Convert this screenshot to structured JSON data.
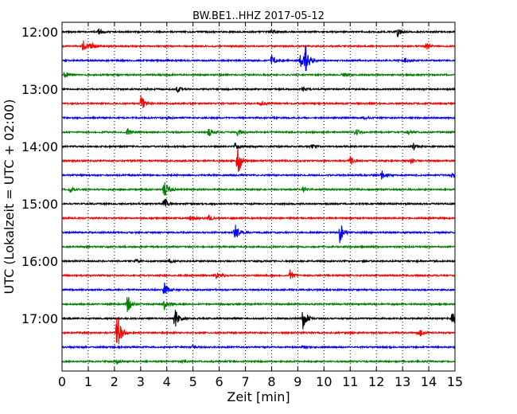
{
  "chart_data": {
    "type": "line",
    "title": "BW.BE1..HHZ 2017-05-12",
    "xlabel": "Zeit  [min]",
    "ylabel": "UTC (Lokalzeit = UTC + 02:00)",
    "xlim": [
      0,
      15
    ],
    "x_ticks": [
      "0",
      "1",
      "2",
      "3",
      "4",
      "5",
      "6",
      "7",
      "8",
      "9",
      "10",
      "11",
      "12",
      "13",
      "14",
      "15"
    ],
    "y_tick_labels": [
      "12:00",
      "13:00",
      "14:00",
      "15:00",
      "16:00",
      "17:00"
    ],
    "y_tick_rows": [
      0,
      4,
      8,
      12,
      16,
      20
    ],
    "grid": true,
    "series_colors": [
      "#000000",
      "#ff0000",
      "#0000ff",
      "#008000"
    ],
    "rows": [
      {
        "start": "12:00",
        "color": "#000000",
        "events": [
          {
            "t": 1.4,
            "a": 4
          },
          {
            "t": 8.0,
            "a": 3
          },
          {
            "t": 12.8,
            "a": 6
          }
        ]
      },
      {
        "start": "12:15",
        "color": "#ff0000",
        "events": [
          {
            "t": 0.8,
            "a": 10
          },
          {
            "t": 1.1,
            "a": 4
          },
          {
            "t": 13.9,
            "a": 5
          }
        ]
      },
      {
        "start": "12:30",
        "color": "#0000ff",
        "events": [
          {
            "t": 8.0,
            "a": 8
          },
          {
            "t": 9.1,
            "a": 10
          },
          {
            "t": 9.3,
            "a": 18
          },
          {
            "t": 13.1,
            "a": 3
          }
        ]
      },
      {
        "start": "12:45",
        "color": "#008000",
        "events": [
          {
            "t": 0.1,
            "a": 5
          },
          {
            "t": 10.7,
            "a": 3
          }
        ]
      },
      {
        "start": "13:00",
        "color": "#000000",
        "events": [
          {
            "t": 4.4,
            "a": 4
          },
          {
            "t": 9.2,
            "a": 3
          }
        ]
      },
      {
        "start": "13:15",
        "color": "#ff0000",
        "events": [
          {
            "t": 3.0,
            "a": 14
          },
          {
            "t": 7.6,
            "a": 4
          }
        ]
      },
      {
        "start": "13:30",
        "color": "#0000ff",
        "events": [
          {
            "t": 4.0,
            "a": 2
          },
          {
            "t": 11.5,
            "a": 2
          }
        ]
      },
      {
        "start": "13:45",
        "color": "#008000",
        "events": [
          {
            "t": 2.5,
            "a": 5
          },
          {
            "t": 5.6,
            "a": 6
          },
          {
            "t": 6.7,
            "a": 6
          },
          {
            "t": 11.2,
            "a": 4
          },
          {
            "t": 13.2,
            "a": 3
          }
        ]
      },
      {
        "start": "14:00",
        "color": "#000000",
        "events": [
          {
            "t": 6.6,
            "a": 5
          },
          {
            "t": 9.5,
            "a": 3
          },
          {
            "t": 13.4,
            "a": 5
          }
        ]
      },
      {
        "start": "14:15",
        "color": "#ff0000",
        "events": [
          {
            "t": 6.7,
            "a": 22
          },
          {
            "t": 11.0,
            "a": 6
          },
          {
            "t": 13.3,
            "a": 3
          }
        ]
      },
      {
        "start": "14:30",
        "color": "#0000ff",
        "events": [
          {
            "t": 12.2,
            "a": 6
          },
          {
            "t": 14.9,
            "a": 4
          }
        ]
      },
      {
        "start": "14:45",
        "color": "#008000",
        "events": [
          {
            "t": 0.3,
            "a": 4
          },
          {
            "t": 3.9,
            "a": 14
          },
          {
            "t": 9.2,
            "a": 4
          }
        ]
      },
      {
        "start": "15:00",
        "color": "#000000",
        "events": [
          {
            "t": 3.9,
            "a": 8
          }
        ]
      },
      {
        "start": "15:15",
        "color": "#ff0000",
        "events": [
          {
            "t": 4.9,
            "a": 5
          },
          {
            "t": 5.6,
            "a": 4
          }
        ]
      },
      {
        "start": "15:30",
        "color": "#0000ff",
        "events": [
          {
            "t": 6.6,
            "a": 14
          },
          {
            "t": 10.6,
            "a": 16
          }
        ]
      },
      {
        "start": "15:45",
        "color": "#008000",
        "events": []
      },
      {
        "start": "16:00",
        "color": "#000000",
        "events": [
          {
            "t": 2.8,
            "a": 3
          },
          {
            "t": 4.1,
            "a": 3
          }
        ]
      },
      {
        "start": "16:15",
        "color": "#ff0000",
        "events": [
          {
            "t": 5.9,
            "a": 5
          },
          {
            "t": 8.7,
            "a": 7
          }
        ]
      },
      {
        "start": "16:30",
        "color": "#0000ff",
        "events": [
          {
            "t": 3.9,
            "a": 10
          }
        ]
      },
      {
        "start": "16:45",
        "color": "#008000",
        "events": [
          {
            "t": 2.5,
            "a": 12
          },
          {
            "t": 3.9,
            "a": 7
          }
        ]
      },
      {
        "start": "17:00",
        "color": "#000000",
        "events": [
          {
            "t": 4.3,
            "a": 14
          },
          {
            "t": 9.2,
            "a": 14
          },
          {
            "t": 14.9,
            "a": 10
          }
        ]
      },
      {
        "start": "17:15",
        "color": "#ff0000",
        "events": [
          {
            "t": 2.1,
            "a": 28
          },
          {
            "t": 13.6,
            "a": 8
          }
        ]
      },
      {
        "start": "17:30",
        "color": "#0000ff",
        "events": [
          {
            "t": 5.0,
            "a": 2
          },
          {
            "t": 9.2,
            "a": 2
          }
        ]
      },
      {
        "start": "17:45",
        "color": "#008000",
        "events": [
          {
            "t": 2.1,
            "a": 4
          },
          {
            "t": 4.6,
            "a": 2
          }
        ]
      }
    ]
  }
}
